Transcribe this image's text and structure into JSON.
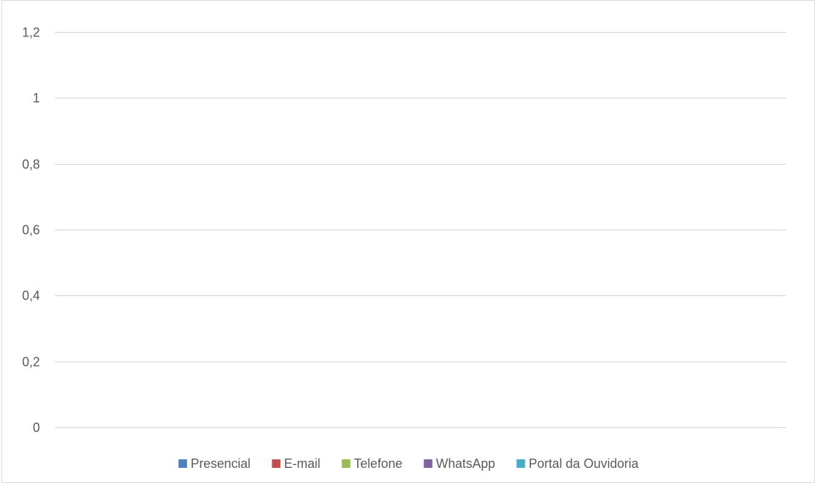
{
  "chart_data": {
    "type": "bar",
    "title": "",
    "xlabel": "",
    "ylabel": "",
    "categories": [],
    "ylim": [
      0,
      1.2
    ],
    "y_ticks": [
      "0",
      "0,2",
      "0,4",
      "0,6",
      "0,8",
      "1",
      "1,2"
    ],
    "grid": true,
    "legend_position": "bottom",
    "series": [
      {
        "name": "Presencial",
        "color": "#4f81bd",
        "values": []
      },
      {
        "name": "E-mail",
        "color": "#c0504d",
        "values": []
      },
      {
        "name": "Telefone",
        "color": "#9bbb59",
        "values": []
      },
      {
        "name": "WhatsApp",
        "color": "#8064a2",
        "values": []
      },
      {
        "name": "Portal da Ouvidoria",
        "color": "#4bacc6",
        "values": []
      }
    ]
  }
}
